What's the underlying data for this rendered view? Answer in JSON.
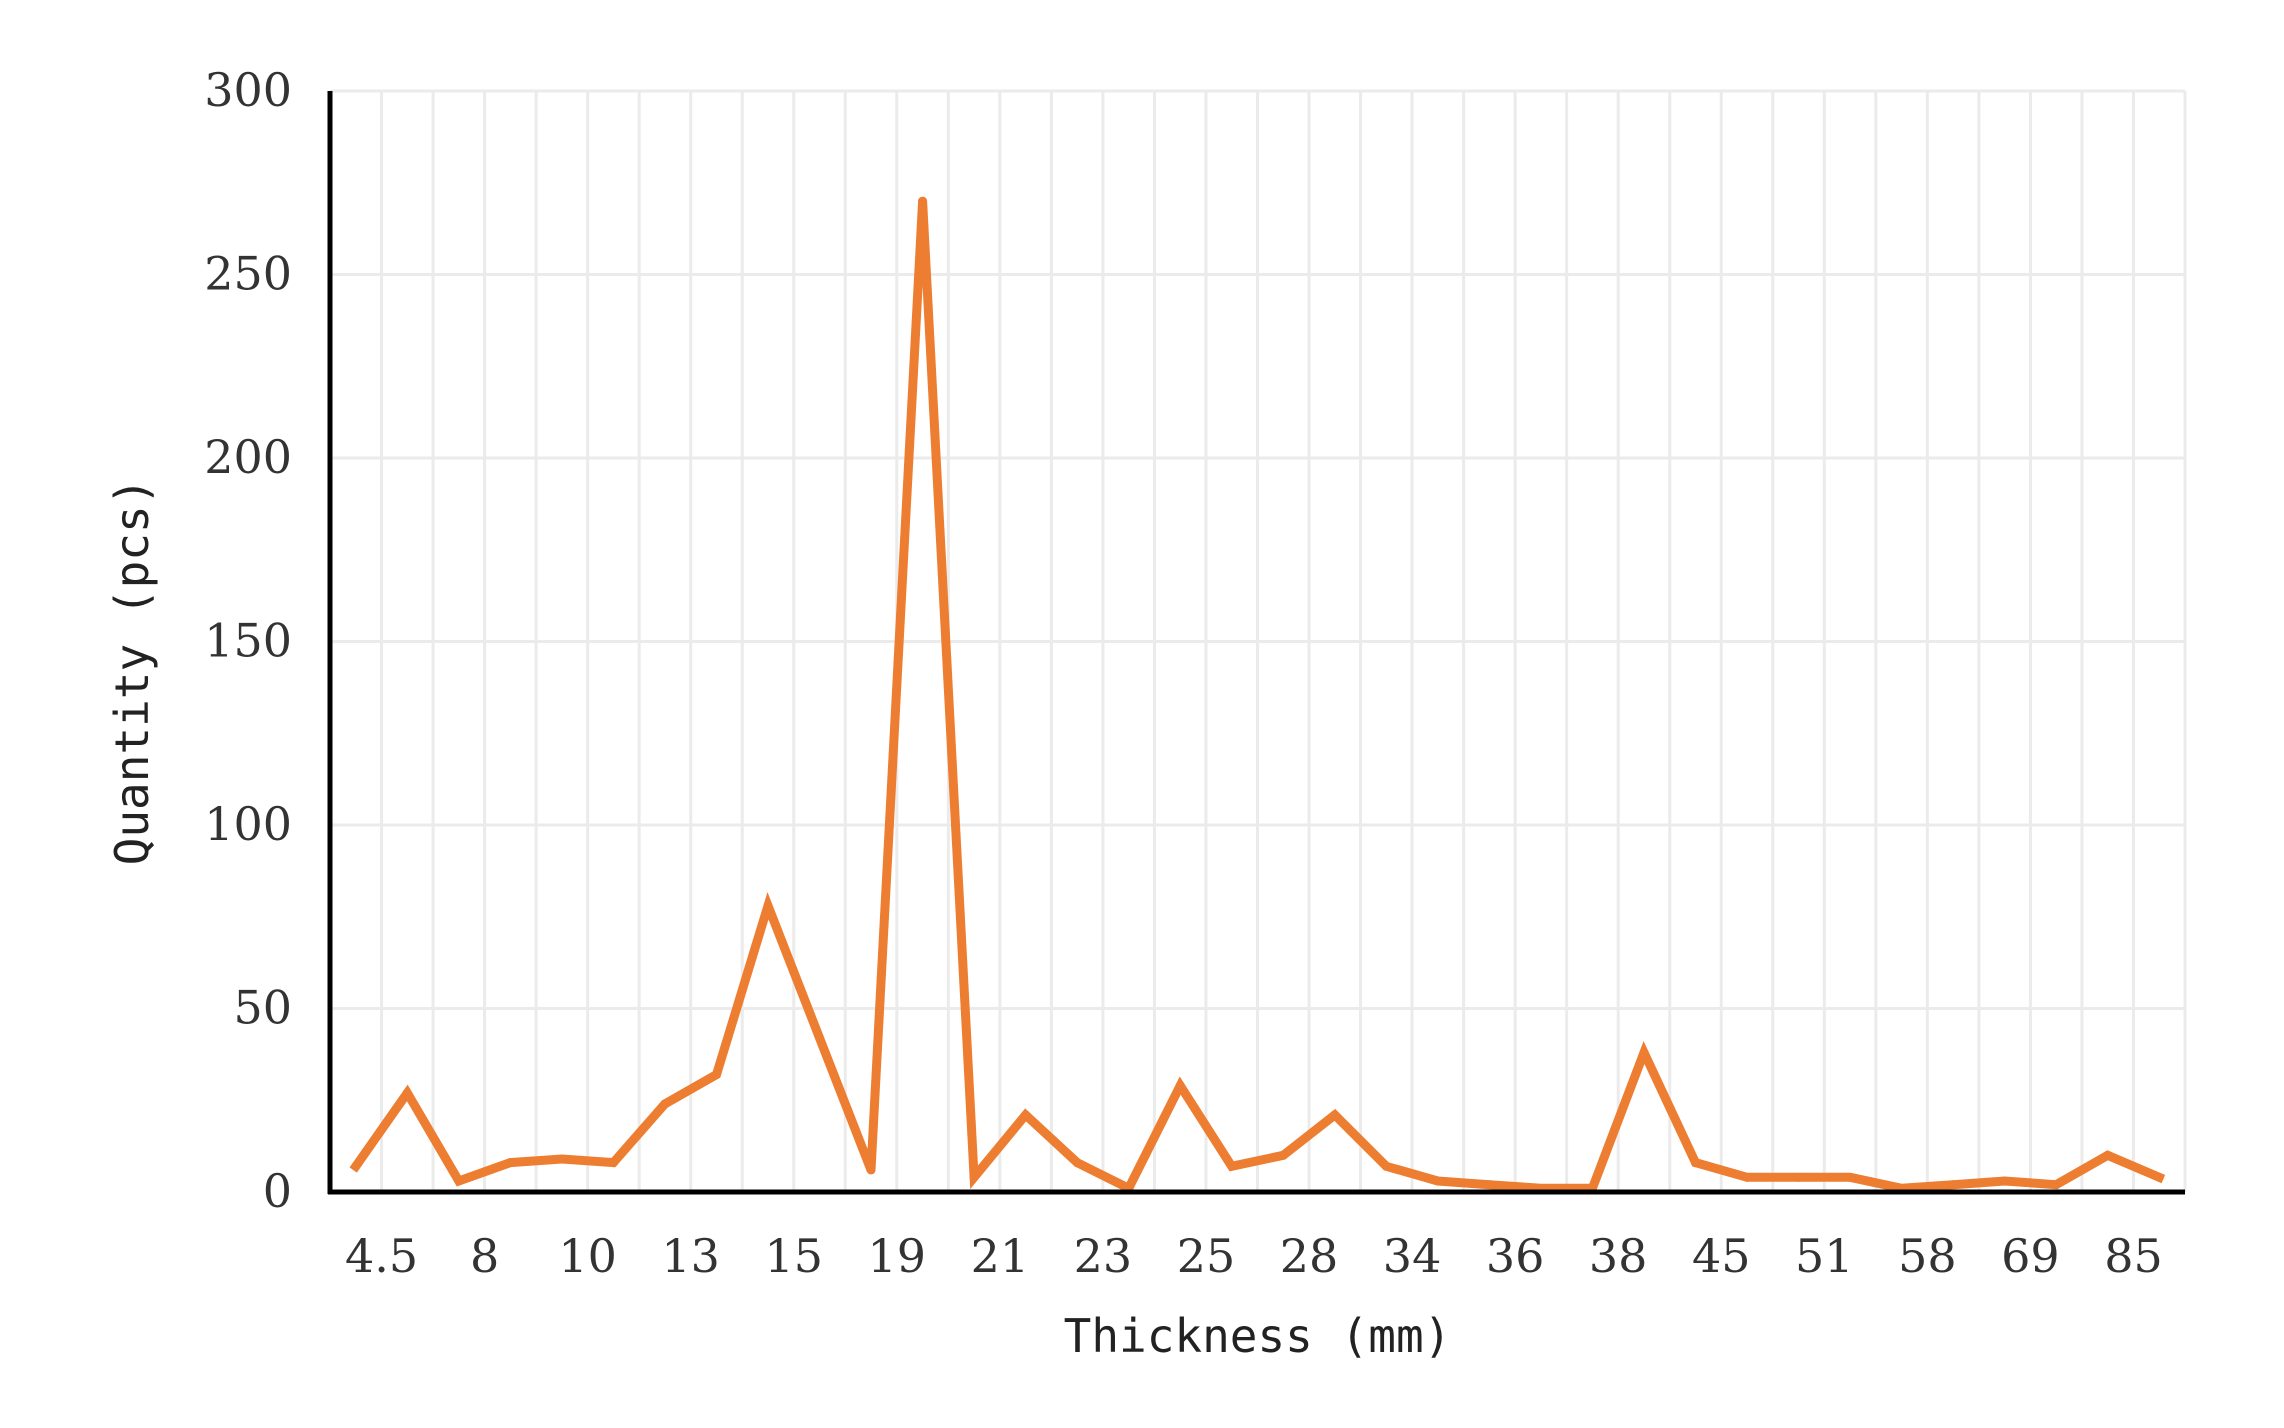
{
  "chart_data": {
    "type": "line",
    "title": "",
    "xlabel": "Thickness (mm)",
    "ylabel": "Quantity (pcs)",
    "ylim": [
      0,
      300
    ],
    "yticks": [
      "0",
      "50",
      "100",
      "150",
      "200",
      "250",
      "300"
    ],
    "categories": [
      "4.5",
      "",
      "8",
      "",
      "10",
      "",
      "13",
      "",
      "15",
      "",
      "19",
      "",
      "21",
      "",
      "23",
      "",
      "25",
      "",
      "28",
      "",
      "34",
      "",
      "36",
      "",
      "38",
      "",
      "45",
      "",
      "51",
      "",
      "58",
      "",
      "69",
      "",
      "85",
      ""
    ],
    "tick_labels": [
      "4.5",
      "8",
      "10",
      "13",
      "15",
      "19",
      "21",
      "23",
      "25",
      "28",
      "34",
      "36",
      "38",
      "45",
      "51",
      "58",
      "69",
      "85"
    ],
    "series": [
      {
        "values": [
          7,
          27,
          3,
          8,
          9,
          8,
          24,
          32,
          78,
          42,
          6,
          270,
          4,
          21,
          8,
          1,
          29,
          7,
          10,
          21,
          7,
          3,
          2,
          1,
          1,
          38,
          8,
          4,
          4,
          4,
          1,
          2,
          3,
          2,
          10,
          4
        ],
        "color": "#ED7D31"
      }
    ],
    "grid": true,
    "legend": "none"
  }
}
